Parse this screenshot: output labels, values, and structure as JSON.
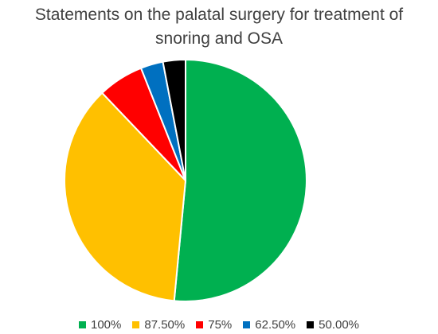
{
  "chart_data": {
    "type": "pie",
    "title": "Statements on the palatal surgery for treatment of snoring and OSA",
    "title_lines": [
      "Statements on the palatal surgery for treatment of",
      "snoring and OSA"
    ],
    "categories": [
      "100%",
      "87.50%",
      "75%",
      "62.50%",
      "50.00%"
    ],
    "values": [
      51.5,
      36.4,
      6.1,
      3.0,
      3.0
    ],
    "colors": [
      "#00B050",
      "#FFC000",
      "#FF0000",
      "#0070C0",
      "#000000"
    ],
    "legend_position": "bottom",
    "slice_border_color": "#ffffff"
  }
}
